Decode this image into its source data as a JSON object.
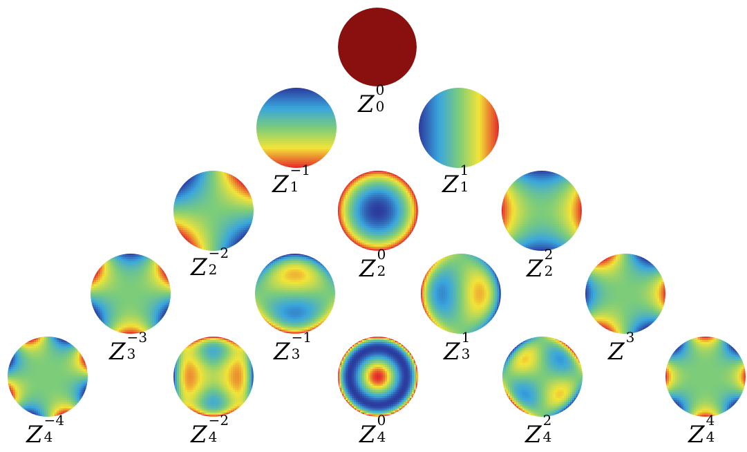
{
  "colors": {
    "background": "#ffffff",
    "colormap": [
      "#2b3b9e",
      "#3aa6dd",
      "#7ccc7a",
      "#f2e437",
      "#e4282a",
      "#8a0f0f"
    ]
  },
  "modes": [
    {
      "id": "z0_0",
      "letter": "Z",
      "sub": "0",
      "sup": "0",
      "pattern": "piston"
    },
    {
      "id": "z1_-1",
      "letter": "Z",
      "sub": "1",
      "sup": "−1",
      "pattern": "tilt-y"
    },
    {
      "id": "z1_1",
      "letter": "Z",
      "sub": "1",
      "sup": "1",
      "pattern": "tilt-x"
    },
    {
      "id": "z2_-2",
      "letter": "Z",
      "sub": "2",
      "sup": "−2",
      "pattern": "astig-oblique"
    },
    {
      "id": "z2_0",
      "letter": "Z",
      "sub": "2",
      "sup": "0",
      "pattern": "defocus"
    },
    {
      "id": "z2_2",
      "letter": "Z",
      "sub": "2",
      "sup": "2",
      "pattern": "astig-vertical"
    },
    {
      "id": "z3_-3",
      "letter": "Z",
      "sub": "3",
      "sup": "−3",
      "pattern": "trefoil"
    },
    {
      "id": "z3_-1",
      "letter": "Z",
      "sub": "3",
      "sup": "−1",
      "pattern": "coma-y"
    },
    {
      "id": "z3_1",
      "letter": "Z",
      "sub": "3",
      "sup": "1",
      "pattern": "coma-x"
    },
    {
      "id": "z3",
      "letter": "Z",
      "sub": "",
      "sup": "3",
      "pattern": "trefoil-rot"
    },
    {
      "id": "z4_-4",
      "letter": "Z",
      "sub": "4",
      "sup": "−4",
      "pattern": "quadrafoil"
    },
    {
      "id": "z4_-2",
      "letter": "Z",
      "sub": "4",
      "sup": "−2",
      "pattern": "sec-astig"
    },
    {
      "id": "z4_0",
      "letter": "Z",
      "sub": "4",
      "sup": "0",
      "pattern": "spherical"
    },
    {
      "id": "z4_2",
      "letter": "Z",
      "sub": "4",
      "sup": "2",
      "pattern": "sec-astig-rot"
    },
    {
      "id": "z4_4",
      "letter": "Z",
      "sub": "4",
      "sup": "4",
      "pattern": "quadrafoil-rot"
    }
  ]
}
